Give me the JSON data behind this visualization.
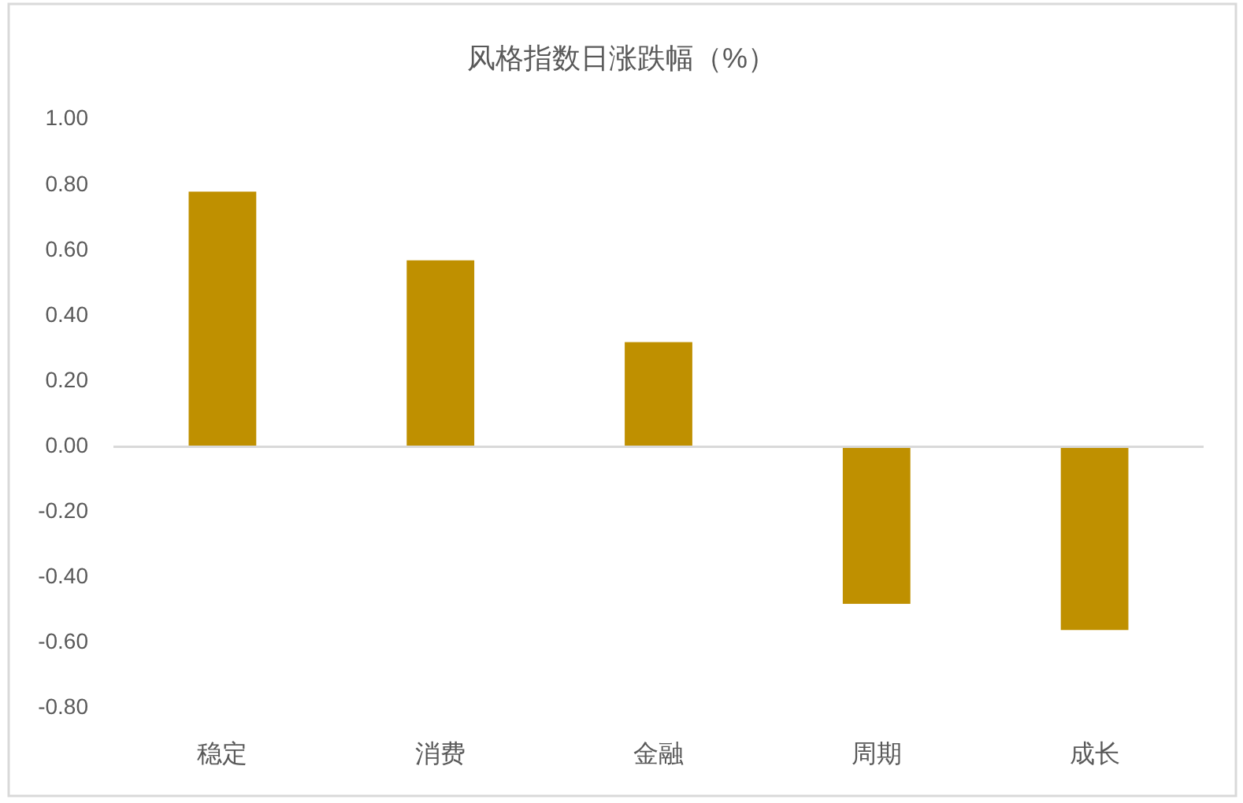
{
  "chart_data": {
    "type": "bar",
    "title": "风格指数日涨跌幅（%）",
    "categories": [
      "稳定",
      "消费",
      "金融",
      "周期",
      "成长"
    ],
    "values": [
      0.78,
      0.57,
      0.32,
      -0.48,
      -0.56
    ],
    "color": "#bf9000",
    "ylim": [
      -0.8,
      1.0
    ],
    "yticks": [
      {
        "value": -0.8,
        "label": "-0.80"
      },
      {
        "value": -0.6,
        "label": "-0.60"
      },
      {
        "value": -0.4,
        "label": "-0.40"
      },
      {
        "value": -0.2,
        "label": "-0.20"
      },
      {
        "value": 0,
        "label": "0.00"
      },
      {
        "value": 0.2,
        "label": "0.20"
      },
      {
        "value": 0.4,
        "label": "0.40"
      },
      {
        "value": 0.6,
        "label": "0.60"
      },
      {
        "value": 0.8,
        "label": "0.80"
      },
      {
        "value": 1.0,
        "label": "1.00"
      }
    ]
  }
}
